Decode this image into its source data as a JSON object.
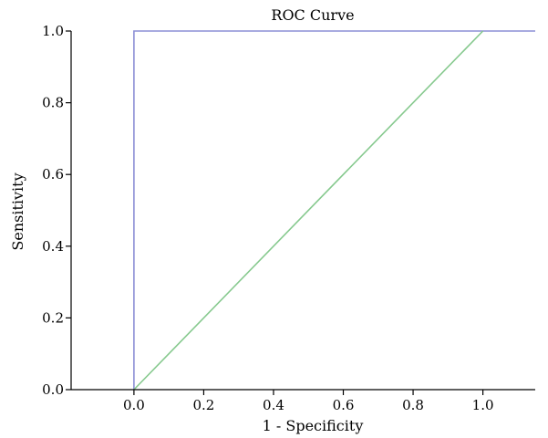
{
  "chart_data": {
    "type": "line",
    "title": "ROC Curve",
    "xlabel": "1 - Specificity",
    "ylabel": "Sensitivity",
    "xlim": [
      -0.18,
      1.15
    ],
    "ylim": [
      0.0,
      1.0
    ],
    "x_ticks": [
      0.0,
      0.2,
      0.4,
      0.6,
      0.8,
      1.0
    ],
    "x_tick_labels": [
      "0.0",
      "0.2",
      "0.4",
      "0.6",
      "0.8",
      "1.0"
    ],
    "y_ticks": [
      0.0,
      0.2,
      0.4,
      0.6,
      0.8,
      1.0
    ],
    "y_tick_labels": [
      "0.0",
      "0.2",
      "0.4",
      "0.6",
      "0.8",
      "1.0"
    ],
    "grid": false,
    "legend": "none",
    "series": [
      {
        "color": "#8c8fd6",
        "x": [
          0.0,
          0.0,
          1.15
        ],
        "y": [
          0.0,
          1.0,
          1.0
        ]
      },
      {
        "color": "#86c98e",
        "x": [
          0.0,
          1.0
        ],
        "y": [
          0.0,
          1.0
        ]
      }
    ]
  }
}
